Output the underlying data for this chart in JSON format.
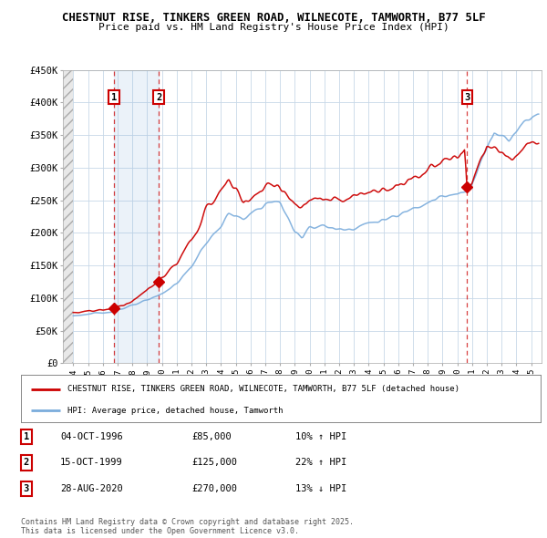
{
  "title_line1": "CHESTNUT RISE, TINKERS GREEN ROAD, WILNECOTE, TAMWORTH, B77 5LF",
  "title_line2": "Price paid vs. HM Land Registry's House Price Index (HPI)",
  "legend_label_red": "CHESTNUT RISE, TINKERS GREEN ROAD, WILNECOTE, TAMWORTH, B77 5LF (detached house)",
  "legend_label_blue": "HPI: Average price, detached house, Tamworth",
  "sales": [
    {
      "label": "1",
      "date_str": "04-OCT-1996",
      "price": 85000,
      "hpi_pct": "10% ↑ HPI",
      "year": 1996.75
    },
    {
      "label": "2",
      "date_str": "15-OCT-1999",
      "price": 125000,
      "hpi_pct": "22% ↑ HPI",
      "year": 1999.79
    },
    {
      "label": "3",
      "date_str": "28-AUG-2020",
      "price": 270000,
      "hpi_pct": "13% ↓ HPI",
      "year": 2020.66
    }
  ],
  "footnote": "Contains HM Land Registry data © Crown copyright and database right 2025.\nThis data is licensed under the Open Government Licence v3.0.",
  "ylim": [
    0,
    450000
  ],
  "yticks": [
    0,
    50000,
    100000,
    150000,
    200000,
    250000,
    300000,
    350000,
    400000,
    450000
  ],
  "ytick_labels": [
    "£0",
    "£50K",
    "£100K",
    "£150K",
    "£200K",
    "£250K",
    "£300K",
    "£350K",
    "£400K",
    "£450K"
  ],
  "bg_color": "#ffffff",
  "plot_bg_color": "#ffffff",
  "grid_color": "#c8d8e8",
  "red_color": "#cc0000",
  "blue_color": "#7aacdc",
  "shade_color": "#ddeeff",
  "hatch_color": "#cccccc"
}
